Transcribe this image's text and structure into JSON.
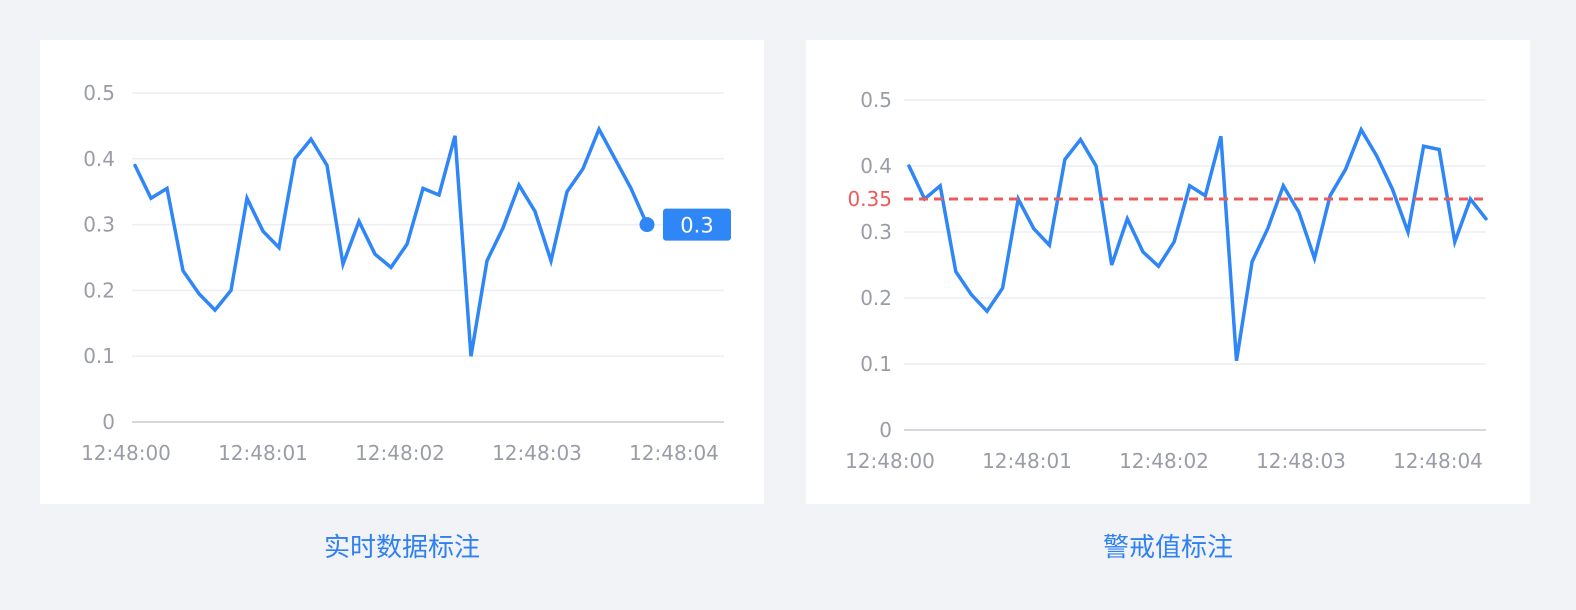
{
  "colors": {
    "line": "#2f86f6",
    "grid": "#eceef3",
    "axis": "#d6d8de",
    "tick": "#9a9da6",
    "warning": "#ec5b5b",
    "caption": "#2f80f0"
  },
  "chart_data": [
    {
      "type": "line",
      "title": "",
      "caption": "实时数据标注",
      "xlabel": "",
      "ylabel": "",
      "ylim": [
        0,
        0.5
      ],
      "yticks": [
        "0",
        "0.1",
        "0.2",
        "0.3",
        "0.4",
        "0.5"
      ],
      "xticks": [
        "12:48:00",
        "12:48:01",
        "12:48:02",
        "12:48:03",
        "12:48:04"
      ],
      "grid": true,
      "series": [
        {
          "values": [
            0.39,
            0.34,
            0.355,
            0.23,
            0.195,
            0.17,
            0.2,
            0.34,
            0.29,
            0.265,
            0.4,
            0.43,
            0.39,
            0.24,
            0.305,
            0.255,
            0.235,
            0.27,
            0.355,
            0.345,
            0.435,
            0.1,
            0.245,
            0.295,
            0.36,
            0.32,
            0.245,
            0.35,
            0.385,
            0.445,
            0.4,
            0.355,
            0.3
          ]
        }
      ],
      "annotation": {
        "type": "latest-point",
        "label": "0.3"
      }
    },
    {
      "type": "line",
      "title": "",
      "caption": "警戒值标注",
      "xlabel": "",
      "ylabel": "",
      "ylim": [
        0,
        0.5
      ],
      "yticks": [
        "0",
        "0.1",
        "0.2",
        "0.3",
        "0.4",
        "0.5"
      ],
      "xticks": [
        "12:48:00",
        "12:48:01",
        "12:48:02",
        "12:48:03",
        "12:48:04"
      ],
      "grid": true,
      "series": [
        {
          "values": [
            0.4,
            0.35,
            0.37,
            0.24,
            0.205,
            0.18,
            0.215,
            0.35,
            0.305,
            0.28,
            0.41,
            0.44,
            0.4,
            0.25,
            0.32,
            0.27,
            0.248,
            0.285,
            0.37,
            0.355,
            0.445,
            0.105,
            0.255,
            0.305,
            0.37,
            0.33,
            0.26,
            0.355,
            0.395,
            0.455,
            0.415,
            0.365,
            0.3,
            0.43,
            0.425,
            0.285,
            0.35,
            0.32
          ]
        }
      ],
      "threshold": {
        "value": 0.35,
        "label": "0.35"
      }
    }
  ]
}
